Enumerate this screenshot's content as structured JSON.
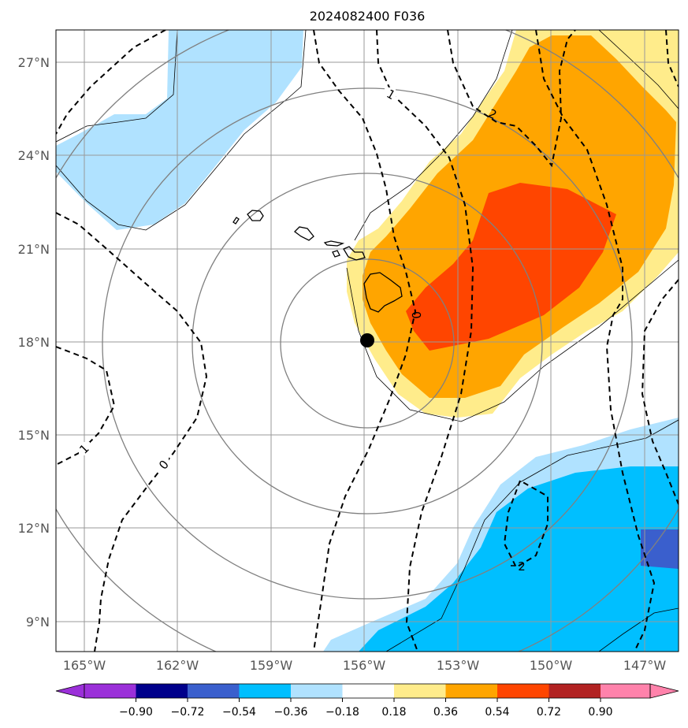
{
  "map": {
    "title": "2024082400 F036",
    "lon_ticks": [
      "165°W",
      "162°W",
      "159°W",
      "156°W",
      "153°W",
      "150°W",
      "147°W"
    ],
    "lat_ticks": [
      "27°N",
      "24°N",
      "21°N",
      "18°N",
      "15°N",
      "12°N",
      "9°N"
    ],
    "contour_labels": [
      "1",
      "2",
      "0",
      "1",
      "0",
      "2"
    ],
    "storm_center": {
      "lon": -156.1,
      "lat": 18.1
    }
  },
  "colorbar": {
    "tick_labels": [
      "−0.90",
      "−0.72",
      "−0.54",
      "−0.36",
      "−0.18",
      "0.18",
      "0.36",
      "0.54",
      "0.72",
      "0.90"
    ],
    "colors": [
      "#9b30d9",
      "#00008b",
      "#3a5fcd",
      "#00bfff",
      "#b0e2ff",
      "#ffffff",
      "#ffec8b",
      "#ffa500",
      "#ff4500",
      "#b22222",
      "#ff82ab"
    ]
  },
  "colors": {
    "fill_pos_light": "#ffec8b",
    "fill_pos_mid": "#ffa500",
    "fill_pos_high": "#ff4500",
    "fill_neg_light": "#b0e2ff",
    "fill_neg_mid": "#00bfff",
    "fill_neg_high": "#3a5fcd"
  }
}
